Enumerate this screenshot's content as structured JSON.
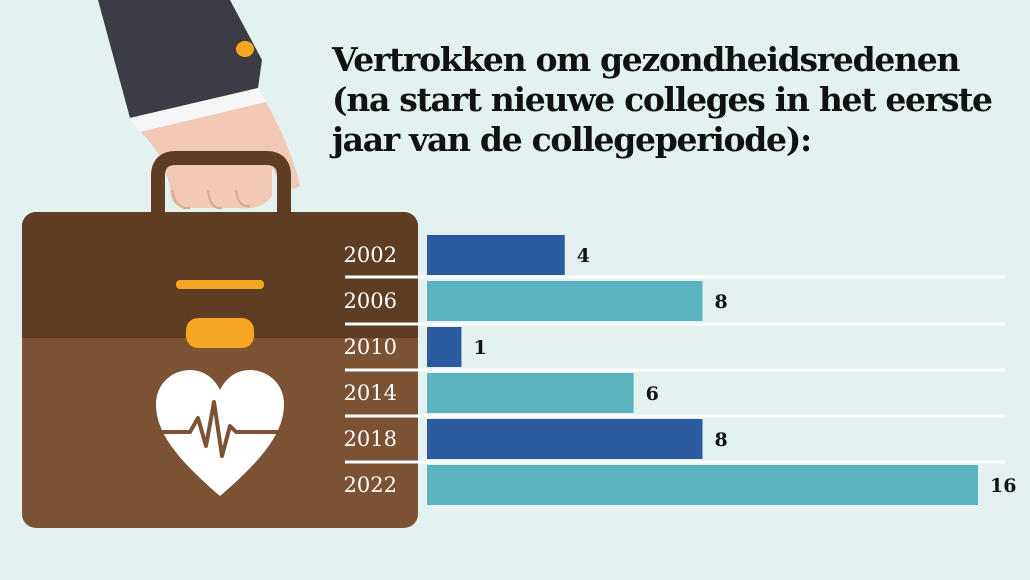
{
  "title": {
    "line1": "Vertrokken om gezondheidsredenen",
    "line2": "(na start nieuwe colleges in het eerste",
    "line3": "jaar van de collegeperiode):"
  },
  "colors": {
    "background": "#e4f1f1",
    "bar_dark": "#2b5a9e",
    "bar_light": "#5bb3c0",
    "briefcase": "#7b5234",
    "briefcase_dark": "#5e3d22",
    "accent": "#f5a623",
    "sleeve": "#3c3d44",
    "skin": "#f1c9b4"
  },
  "icons": [
    "hand-icon",
    "briefcase-icon",
    "heart-pulse-icon"
  ],
  "chart_data": {
    "type": "bar",
    "orientation": "horizontal",
    "title": "Vertrokken om gezondheidsredenen (na start nieuwe colleges in het eerste jaar van de collegeperiode):",
    "categories": [
      "2002",
      "2006",
      "2010",
      "2014",
      "2018",
      "2022"
    ],
    "values": [
      4,
      8,
      1,
      6,
      8,
      16
    ],
    "bar_colors": [
      "#2b5a9e",
      "#5bb3c0",
      "#2b5a9e",
      "#5bb3c0",
      "#2b5a9e",
      "#5bb3c0"
    ],
    "xlim": [
      0,
      16
    ],
    "grid": false,
    "data_labels": true
  }
}
